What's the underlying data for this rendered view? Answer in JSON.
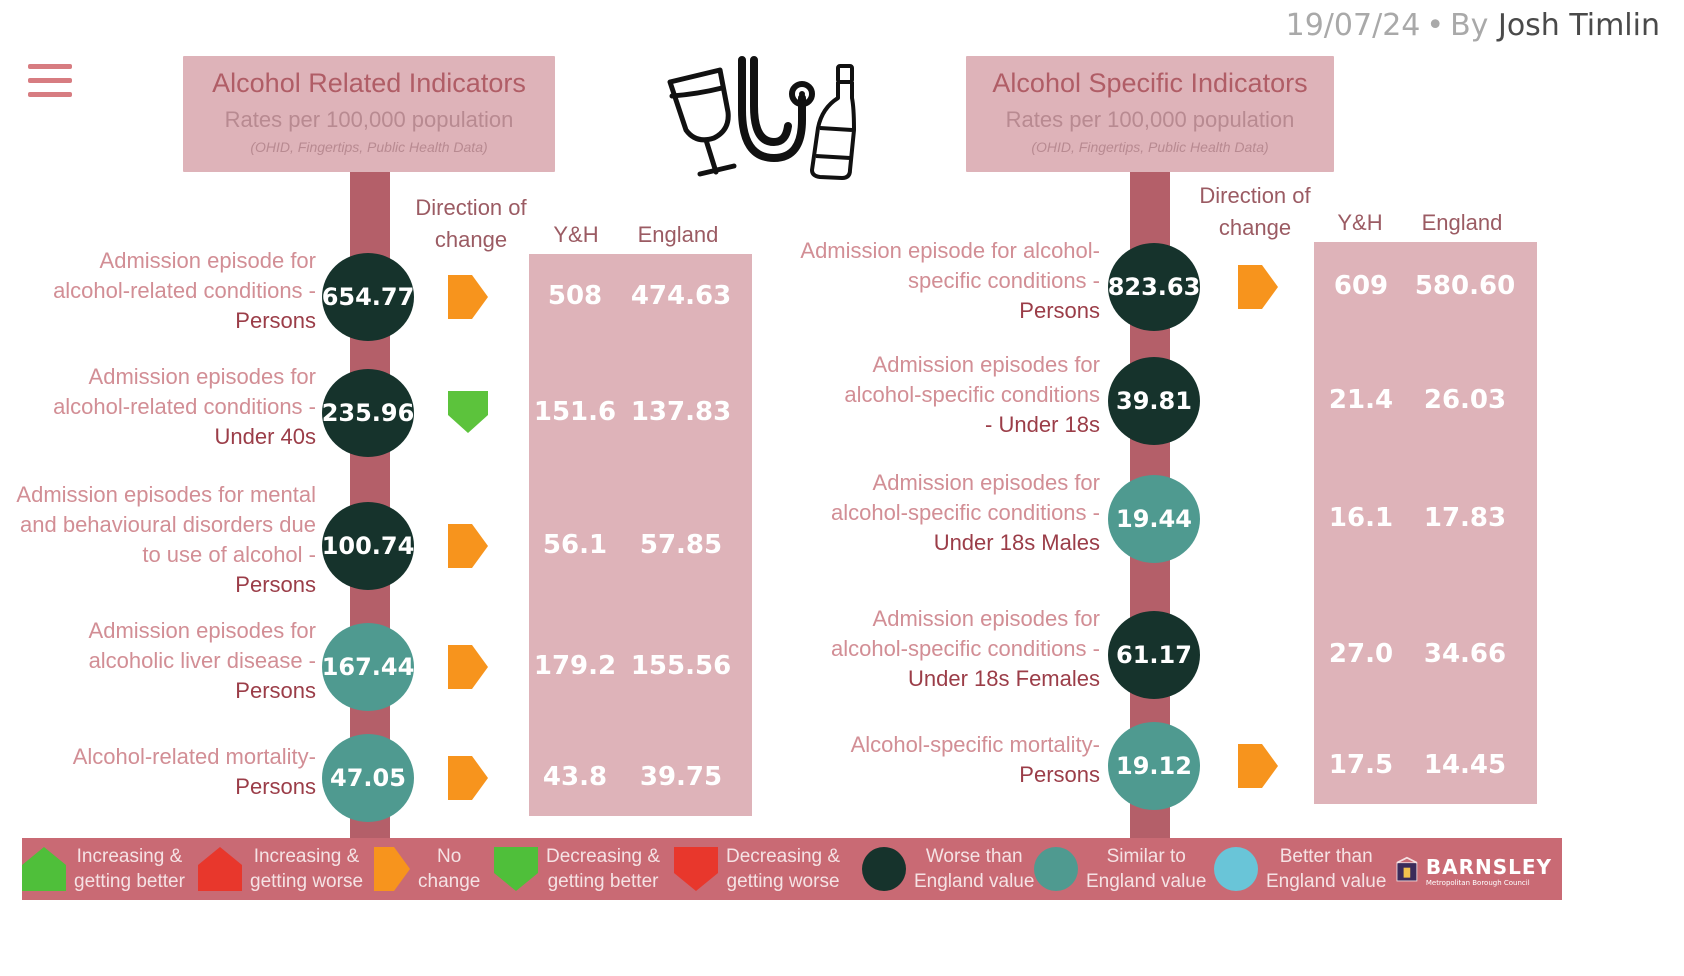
{
  "byline": {
    "date": "19/07/24",
    "dot": "•",
    "by": "By",
    "author": "Josh Timlin"
  },
  "icons": [
    "hamburger-menu-icon",
    "wine-glass-icon",
    "stethoscope-icon",
    "bottle-icon"
  ],
  "left": {
    "title": "Alcohol Related Indicators",
    "subtitle": "Rates per 100,000 population",
    "source": "(OHID, Fingertips, Public Health Data)",
    "col_direction": [
      "Direction of",
      "change"
    ],
    "col_yh": "Y&H",
    "col_england": "England",
    "rows": [
      {
        "label_lines": [
          "Admission episode for",
          "alcohol-related conditions -"
        ],
        "label_em": "Persons",
        "value": "654.77",
        "status": "worse",
        "direction": "no-change",
        "yh": "508",
        "england": "474.63"
      },
      {
        "label_lines": [
          "Admission episodes for",
          "alcohol-related conditions  -"
        ],
        "label_em": "Under 40s",
        "value": "235.96",
        "status": "worse",
        "direction": "decreasing-better",
        "yh": "151.6",
        "england": "137.83"
      },
      {
        "label_lines": [
          "Admission episodes for mental",
          "and behavioural disorders due",
          "to use of alcohol -"
        ],
        "label_em": "Persons",
        "value": "100.74",
        "status": "worse",
        "direction": "no-change",
        "yh": "56.1",
        "england": "57.85"
      },
      {
        "label_lines": [
          "Admission episodes for",
          "alcoholic liver disease -"
        ],
        "label_em": "Persons",
        "value": "167.44",
        "status": "similar",
        "direction": "no-change",
        "yh": "179.2",
        "england": "155.56"
      },
      {
        "label_lines": [
          "Alcohol-related mortality-"
        ],
        "label_em": "Persons",
        "value": "47.05",
        "status": "similar",
        "direction": "no-change",
        "yh": "43.8",
        "england": "39.75"
      }
    ]
  },
  "right": {
    "title": "Alcohol Specific Indicators",
    "subtitle": "Rates per 100,000 population",
    "source": "(OHID, Fingertips, Public Health Data)",
    "col_direction": [
      "Direction of",
      "change"
    ],
    "col_yh": "Y&H",
    "col_england": "England",
    "rows": [
      {
        "label_lines": [
          "Admission episode for alcohol-",
          "specific conditions -"
        ],
        "label_em": "Persons",
        "value": "823.63",
        "status": "worse",
        "direction": "no-change",
        "yh": "609",
        "england": "580.60"
      },
      {
        "label_lines": [
          "Admission episodes for",
          "alcohol-specific conditions"
        ],
        "label_em": "- Under 18s",
        "value": "39.81",
        "status": "worse",
        "direction": "",
        "yh": "21.4",
        "england": "26.03"
      },
      {
        "label_lines": [
          "Admission episodes for",
          "alcohol-specific conditions  -"
        ],
        "label_em": "Under 18s Males",
        "value": "19.44",
        "status": "similar",
        "direction": "",
        "yh": "16.1",
        "england": "17.83"
      },
      {
        "label_lines": [
          "Admission episodes for",
          "alcohol-specific conditions  -"
        ],
        "label_em": "Under 18s Females",
        "value": "61.17",
        "status": "worse",
        "direction": "",
        "yh": "27.0",
        "england": "34.66"
      },
      {
        "label_lines": [
          "Alcohol-specific mortality-"
        ],
        "label_em": "Persons",
        "value": "19.12",
        "status": "similar",
        "direction": "no-change",
        "yh": "17.5",
        "england": "14.45"
      }
    ]
  },
  "legend": [
    {
      "shape": "up",
      "color": "#4fbf3a",
      "lines": [
        "Increasing &",
        "getting better"
      ]
    },
    {
      "shape": "up",
      "color": "#e8372c",
      "lines": [
        "Increasing &",
        "getting worse"
      ]
    },
    {
      "shape": "right",
      "color": "#f7941d",
      "lines": [
        "No",
        "change"
      ]
    },
    {
      "shape": "down",
      "color": "#4fbf3a",
      "lines": [
        "Decreasing &",
        "getting better"
      ]
    },
    {
      "shape": "down",
      "color": "#e8372c",
      "lines": [
        "Decreasing &",
        "getting worse"
      ]
    },
    {
      "shape": "circle",
      "color": "#16332c",
      "lines": [
        "Worse than",
        "England value"
      ]
    },
    {
      "shape": "circle",
      "color": "#4f9a90",
      "lines": [
        "Similar to",
        "England value"
      ]
    },
    {
      "shape": "circle",
      "color": "#69c5d8",
      "lines": [
        "Better than",
        "England value"
      ]
    }
  ],
  "brand": {
    "name": "BARNSLEY",
    "sub": "Metropolitan Borough Council"
  },
  "colors": {
    "no_change": "#f7941d",
    "decreasing_better": "#5cc33c",
    "worse": "#16332c",
    "similar": "#4f9a90",
    "better": "#69c5d8",
    "header_bg": "#deb3b9",
    "pole": "#b45f69",
    "legend_bg": "#c96a74"
  }
}
